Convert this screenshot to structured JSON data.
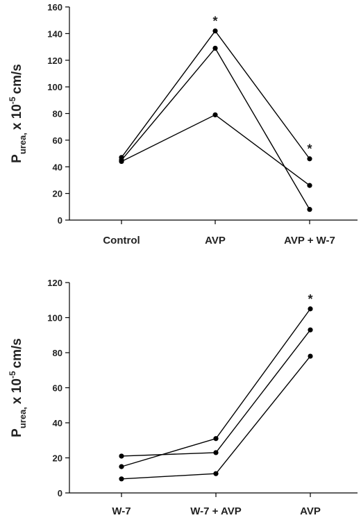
{
  "chart_data": [
    {
      "type": "line",
      "categories": [
        "Control",
        "AVP",
        "AVP + W-7"
      ],
      "ylabel": {
        "main": "P",
        "sub": "urea,",
        "mid": "x 10",
        "sup": "-5",
        "unit": "cm/s"
      },
      "series": [
        {
          "color": "#000000",
          "values": [
            47,
            142,
            46
          ]
        },
        {
          "color": "#000000",
          "values": [
            45,
            129,
            8
          ]
        },
        {
          "color": "#000000",
          "values": [
            44,
            79,
            26
          ]
        }
      ],
      "ylim": [
        0,
        160
      ],
      "yticks": [
        0,
        20,
        40,
        60,
        80,
        100,
        120,
        140,
        160
      ],
      "annotations": [
        {
          "text": "*",
          "x": "AVP"
        },
        {
          "text": "*",
          "x": "AVP + W-7"
        }
      ]
    },
    {
      "type": "line",
      "categories": [
        "W-7",
        "W-7 + AVP",
        "AVP"
      ],
      "ylabel": {
        "main": "P",
        "sub": "urea,",
        "mid": "x 10",
        "sup": "-5",
        "unit": "cm/s"
      },
      "series": [
        {
          "color": "#000000",
          "values": [
            21,
            23,
            93
          ]
        },
        {
          "color": "#000000",
          "values": [
            15,
            31,
            105
          ]
        },
        {
          "color": "#000000",
          "values": [
            8,
            11,
            78
          ]
        }
      ],
      "ylim": [
        0,
        120
      ],
      "yticks": [
        0,
        20,
        40,
        60,
        80,
        100,
        120
      ],
      "annotations": [
        {
          "text": "*",
          "x": "AVP"
        }
      ]
    }
  ]
}
